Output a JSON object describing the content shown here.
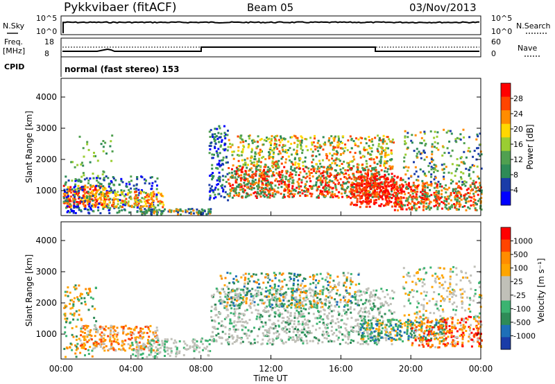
{
  "header": {
    "station": "Pykkvibaer (fitACF)",
    "beam": "Beam 05",
    "date": "03/Nov/2013"
  },
  "sky_panel": {
    "left_label": "N.Sky",
    "right_label": "N.Search",
    "left_ticks": [
      "10^5",
      "10^0"
    ],
    "right_ticks": [
      "10^5",
      "10^0"
    ]
  },
  "freq_panel": {
    "left_label_1": "Freq.",
    "left_label_2": "[MHz]",
    "right_label": "Nave",
    "left_ticks": [
      "18",
      "8"
    ],
    "right_ticks": [
      "60",
      "0"
    ]
  },
  "cpid": {
    "label": "CPID",
    "value": "normal (fast stereo) 153"
  },
  "colors": {
    "power": [
      "#0000ff",
      "#1a3ca8",
      "#2e8b57",
      "#50a050",
      "#9acd32",
      "#ffd700",
      "#ff8c00",
      "#ff4500",
      "#ff0000"
    ],
    "velocity": [
      "#ff0000",
      "#ff4500",
      "#ff8c00",
      "#ffa500",
      "#c0c0b8",
      "#c0c0b8",
      "#3cb371",
      "#2e8b57",
      "#1e6fb8",
      "#1a3ca8"
    ]
  },
  "chart_data": [
    {
      "type": "heatmap",
      "name": "power",
      "ylabel": "Slant Range [km]",
      "yticks": [
        "1000",
        "2000",
        "3000",
        "4000"
      ],
      "ylim": [
        200,
        4600
      ],
      "xlim": [
        0,
        24
      ],
      "colorbar": {
        "label": "Power [dB]",
        "ticks": [
          "4",
          "8",
          "12",
          "16",
          "20",
          "24",
          "28"
        ],
        "range": [
          0,
          32
        ]
      }
    },
    {
      "type": "heatmap",
      "name": "velocity",
      "ylabel": "Slant Range [km]",
      "yticks": [
        "1000",
        "2000",
        "3000",
        "4000"
      ],
      "ylim": [
        200,
        4600
      ],
      "xlim": [
        0,
        24
      ],
      "xlabel": "Time UT",
      "xticks": [
        "00:00",
        "04:00",
        "08:00",
        "12:00",
        "16:00",
        "20:00",
        "00:00"
      ],
      "colorbar": {
        "label": "Velocity [m s⁻¹]",
        "ticks": [
          "1000",
          "500",
          "100",
          "25",
          "-25",
          "-100",
          "-500",
          "-1000"
        ]
      }
    }
  ]
}
